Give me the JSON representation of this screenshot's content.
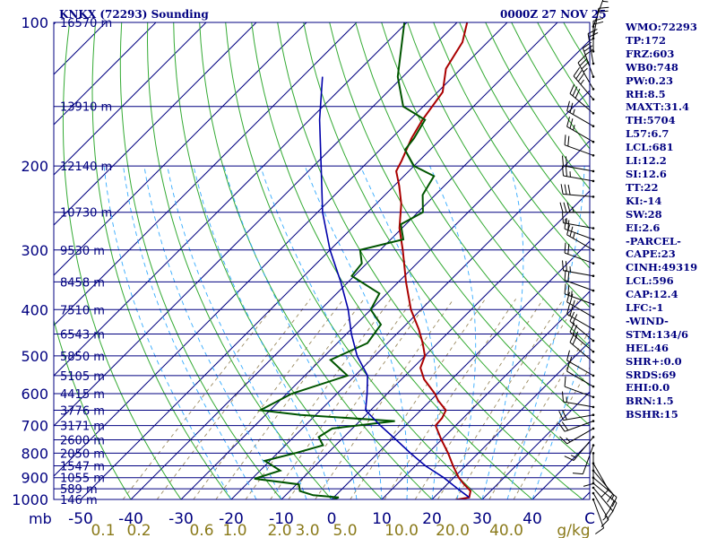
{
  "header": {
    "station": "KNKX (72293) Sounding",
    "time": "0000Z 27 NOV 25"
  },
  "indices": [
    "WMO:72293",
    "TP:172",
    "FRZ:603",
    "WB0:748",
    "PW:0.23",
    "RH:8.5",
    "MAXT:31.4",
    "TH:5704",
    "L57:6.7",
    "LCL:681",
    "LI:12.2",
    "SI:12.6",
    "TT:22",
    "KI:-14",
    "SW:28",
    "EI:2.6",
    "-PARCEL-",
    "CAPE:23",
    "CINH:49319",
    "LCL:596",
    "CAP:12.4",
    "LFC:-1",
    "-WIND-",
    "STM:134/6",
    "HEL:46",
    "SHR+:0.0",
    "SRDS:69",
    "EHI:0.0",
    "BRN:1.5",
    "BSHR:15"
  ],
  "colors": {
    "isobar": "#000080",
    "isotherm": "#000080",
    "dry_adiabat": "#33aa33",
    "moist_adiabat": "#33aaff",
    "mixing_ratio": "#9a8a60",
    "temperature": "#aa0000",
    "dewpoint": "#005500",
    "parcel": "#0000aa",
    "wind": "#000000",
    "text": "#000080",
    "mixing_label": "#8a7a1a"
  },
  "chart_data": {
    "type": "line",
    "subtype": "skew-t log-p",
    "pressure_levels": [
      100,
      200,
      300,
      400,
      500,
      600,
      700,
      800,
      900,
      1000
    ],
    "pressure_axis_unit": "mb",
    "temperature_ticks": [
      -50,
      -40,
      -30,
      -20,
      -10,
      0,
      10,
      20,
      30,
      40
    ],
    "temperature_tick_labels": [
      "-50",
      "-40",
      "-30",
      "-20",
      "-10",
      "0",
      "10",
      "20",
      "30",
      "40",
      "C"
    ],
    "temperature_unit": "C",
    "mixing_ratio_labels": [
      "0.1",
      "0.2",
      "0.6",
      "1.0",
      "2.0",
      "3.0",
      "5.0",
      "10.0",
      "20.0",
      "40.0"
    ],
    "mixing_ratio_unit": "g/kg",
    "height_labels": [
      {
        "p": 100,
        "label": "16570 m"
      },
      {
        "p": 150,
        "label": "13910 m"
      },
      {
        "p": 200,
        "label": "12140 m"
      },
      {
        "p": 250,
        "label": "10730 m"
      },
      {
        "p": 300,
        "label": "9530 m"
      },
      {
        "p": 350,
        "label": "8458 m"
      },
      {
        "p": 400,
        "label": "7510 m"
      },
      {
        "p": 450,
        "label": "6543 m"
      },
      {
        "p": 500,
        "label": "5850 m"
      },
      {
        "p": 550,
        "label": "5105 m"
      },
      {
        "p": 600,
        "label": "4415 m"
      },
      {
        "p": 650,
        "label": "3776 m"
      },
      {
        "p": 700,
        "label": "3171 m"
      },
      {
        "p": 750,
        "label": "2600 m"
      },
      {
        "p": 800,
        "label": "2050 m"
      },
      {
        "p": 850,
        "label": "1547 m"
      },
      {
        "p": 900,
        "label": "1055 m"
      },
      {
        "p": 950,
        "label": "589 m"
      },
      {
        "p": 1000,
        "label": "146 m"
      }
    ],
    "series": [
      {
        "key": "temperature",
        "points": [
          [
            1005,
            24.2
          ],
          [
            990,
            27.0
          ],
          [
            960,
            26.0
          ],
          [
            925,
            23.0
          ],
          [
            900,
            21.0
          ],
          [
            850,
            17.5
          ],
          [
            800,
            14.0
          ],
          [
            750,
            10.0
          ],
          [
            700,
            6.0
          ],
          [
            675,
            5.8
          ],
          [
            650,
            5.0
          ],
          [
            620,
            1.5
          ],
          [
            600,
            -0.5
          ],
          [
            560,
            -5.5
          ],
          [
            530,
            -8.5
          ],
          [
            500,
            -10.0
          ],
          [
            470,
            -13.0
          ],
          [
            440,
            -16.5
          ],
          [
            400,
            -22.0
          ],
          [
            350,
            -28.5
          ],
          [
            300,
            -35.5
          ],
          [
            270,
            -40.5
          ],
          [
            240,
            -45.0
          ],
          [
            220,
            -49.0
          ],
          [
            205,
            -52.5
          ],
          [
            195,
            -53.5
          ],
          [
            175,
            -56.0
          ],
          [
            160,
            -57.5
          ],
          [
            140,
            -59.0
          ],
          [
            125,
            -63.0
          ],
          [
            110,
            -65.0
          ],
          [
            100,
            -68.0
          ]
        ]
      },
      {
        "key": "dewpoint",
        "points": [
          [
            1005,
            0.0
          ],
          [
            990,
            1.0
          ],
          [
            980,
            -4.5
          ],
          [
            960,
            -8.0
          ],
          [
            930,
            -9.5
          ],
          [
            905,
            -19.5
          ],
          [
            870,
            -16.0
          ],
          [
            830,
            -21.0
          ],
          [
            800,
            -16.5
          ],
          [
            770,
            -12.5
          ],
          [
            740,
            -15.0
          ],
          [
            710,
            -14.0
          ],
          [
            685,
            -3.0
          ],
          [
            665,
            -23.0
          ],
          [
            650,
            -32.0
          ],
          [
            600,
            -29.0
          ],
          [
            550,
            -21.5
          ],
          [
            510,
            -28.0
          ],
          [
            470,
            -24.0
          ],
          [
            430,
            -25.0
          ],
          [
            400,
            -30.0
          ],
          [
            370,
            -31.5
          ],
          [
            340,
            -40.5
          ],
          [
            320,
            -41.0
          ],
          [
            300,
            -44.0
          ],
          [
            285,
            -37.5
          ],
          [
            265,
            -41.0
          ],
          [
            250,
            -39.0
          ],
          [
            230,
            -42.5
          ],
          [
            210,
            -44.0
          ],
          [
            200,
            -50.0
          ],
          [
            185,
            -55.0
          ],
          [
            175,
            -55.5
          ],
          [
            160,
            -57.0
          ],
          [
            150,
            -64.0
          ],
          [
            130,
            -71.0
          ],
          [
            100,
            -80.5
          ]
        ]
      },
      {
        "key": "parcel",
        "points": [
          [
            990,
            27.0
          ],
          [
            950,
            23.0
          ],
          [
            900,
            18.0
          ],
          [
            850,
            12.0
          ],
          [
            800,
            6.5
          ],
          [
            750,
            1.0
          ],
          [
            700,
            -5.0
          ],
          [
            650,
            -11.0
          ],
          [
            600,
            -14.0
          ],
          [
            550,
            -17.5
          ],
          [
            500,
            -23.5
          ],
          [
            450,
            -29.0
          ],
          [
            400,
            -34.5
          ],
          [
            350,
            -41.5
          ],
          [
            300,
            -50.0
          ],
          [
            250,
            -59.0
          ],
          [
            200,
            -68.5
          ],
          [
            160,
            -78.0
          ],
          [
            130,
            -86.0
          ]
        ]
      }
    ],
    "wind_barbs": [
      {
        "p": 1000,
        "dir": 160,
        "spd": 10
      },
      {
        "p": 970,
        "dir": 150,
        "spd": 15
      },
      {
        "p": 945,
        "dir": 140,
        "spd": 20
      },
      {
        "p": 925,
        "dir": 130,
        "spd": 20
      },
      {
        "p": 900,
        "dir": 130,
        "spd": 15
      },
      {
        "p": 870,
        "dir": 140,
        "spd": 10
      },
      {
        "p": 840,
        "dir": 150,
        "spd": 10
      },
      {
        "p": 800,
        "dir": 180,
        "spd": 10
      },
      {
        "p": 770,
        "dir": 200,
        "spd": 10
      },
      {
        "p": 740,
        "dir": 220,
        "spd": 15
      },
      {
        "p": 710,
        "dir": 240,
        "spd": 15
      },
      {
        "p": 685,
        "dir": 250,
        "spd": 20
      },
      {
        "p": 665,
        "dir": 260,
        "spd": 20
      },
      {
        "p": 640,
        "dir": 280,
        "spd": 15
      },
      {
        "p": 610,
        "dir": 290,
        "spd": 10
      },
      {
        "p": 580,
        "dir": 300,
        "spd": 10
      },
      {
        "p": 550,
        "dir": 300,
        "spd": 15
      },
      {
        "p": 515,
        "dir": 310,
        "spd": 20
      },
      {
        "p": 490,
        "dir": 310,
        "spd": 25
      },
      {
        "p": 465,
        "dir": 310,
        "spd": 20
      },
      {
        "p": 440,
        "dir": 300,
        "spd": 20
      },
      {
        "p": 415,
        "dir": 300,
        "spd": 25
      },
      {
        "p": 390,
        "dir": 290,
        "spd": 25
      },
      {
        "p": 365,
        "dir": 290,
        "spd": 20
      },
      {
        "p": 340,
        "dir": 280,
        "spd": 25
      },
      {
        "p": 320,
        "dir": 290,
        "spd": 20
      },
      {
        "p": 300,
        "dir": 300,
        "spd": 25
      },
      {
        "p": 285,
        "dir": 290,
        "spd": 20
      },
      {
        "p": 270,
        "dir": 280,
        "spd": 15
      },
      {
        "p": 250,
        "dir": 270,
        "spd": 35
      },
      {
        "p": 232,
        "dir": 275,
        "spd": 30
      },
      {
        "p": 215,
        "dir": 280,
        "spd": 25
      },
      {
        "p": 205,
        "dir": 280,
        "spd": 20
      },
      {
        "p": 190,
        "dir": 290,
        "spd": 20
      },
      {
        "p": 178,
        "dir": 300,
        "spd": 25
      },
      {
        "p": 165,
        "dir": 300,
        "spd": 25
      },
      {
        "p": 155,
        "dir": 310,
        "spd": 30
      },
      {
        "p": 145,
        "dir": 320,
        "spd": 35
      },
      {
        "p": 138,
        "dir": 330,
        "spd": 35
      },
      {
        "p": 130,
        "dir": 340,
        "spd": 30
      },
      {
        "p": 122,
        "dir": 350,
        "spd": 25
      },
      {
        "p": 115,
        "dir": 0,
        "spd": 20
      },
      {
        "p": 108,
        "dir": 10,
        "spd": 20
      },
      {
        "p": 102,
        "dir": 20,
        "spd": 15
      }
    ]
  }
}
